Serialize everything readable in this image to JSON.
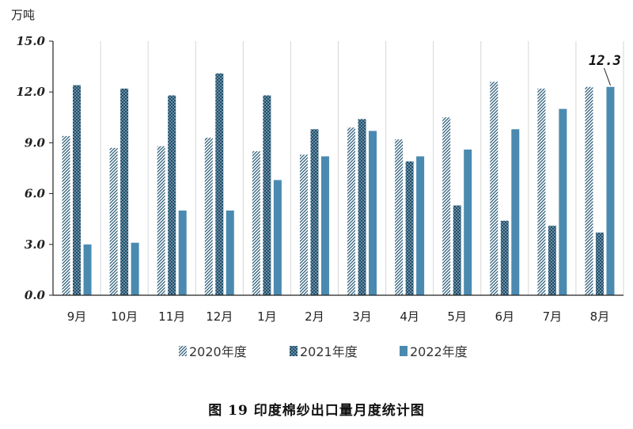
{
  "chart_data": {
    "type": "bar",
    "ylabel": "万吨",
    "ylim": [
      0,
      15
    ],
    "yticks": [
      "0.0",
      "3.0",
      "6.0",
      "9.0",
      "12.0",
      "15.0"
    ],
    "categories": [
      "9月",
      "10月",
      "11月",
      "12月",
      "1月",
      "2月",
      "3月",
      "4月",
      "5月",
      "6月",
      "7月",
      "8月"
    ],
    "series": [
      {
        "name": "2020年度",
        "values": [
          9.4,
          8.7,
          8.8,
          9.3,
          8.5,
          8.3,
          9.9,
          9.2,
          10.5,
          12.6,
          12.2,
          12.3
        ]
      },
      {
        "name": "2021年度",
        "values": [
          12.4,
          12.2,
          11.8,
          13.1,
          11.8,
          9.8,
          10.4,
          7.9,
          5.3,
          4.4,
          4.1,
          3.7
        ]
      },
      {
        "name": "2022年度",
        "values": [
          3.0,
          3.1,
          5.0,
          5.0,
          6.8,
          8.2,
          9.7,
          8.2,
          8.6,
          9.8,
          11.0,
          12.3
        ]
      }
    ],
    "annotation": {
      "text": "12.3",
      "series": 2,
      "index": 11
    },
    "legend_position": "bottom",
    "grid": "vertical",
    "colors": {
      "series_2020": "#2c5d78",
      "series_2021": "#1f4e6b",
      "series_2022": "#4a8ab0"
    }
  },
  "caption": "图 19   印度棉纱出口量月度统计图"
}
